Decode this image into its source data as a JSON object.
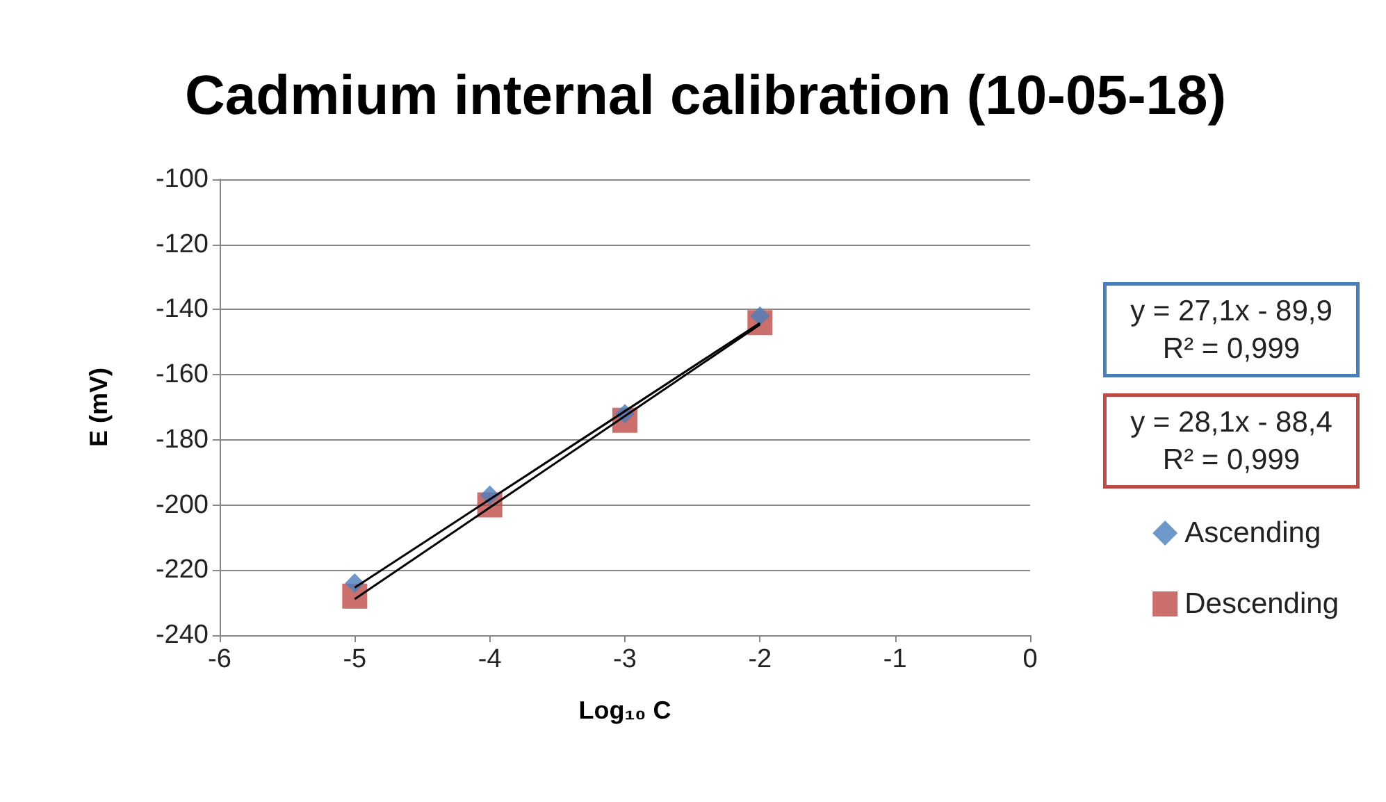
{
  "chart_data": {
    "type": "scatter",
    "title": "Cadmium internal calibration (10-05-18)",
    "xlabel": "Log₁₀ C",
    "ylabel": "E (mV)",
    "x": [
      -5,
      -4,
      -3,
      -2
    ],
    "series": [
      {
        "name": "Ascending",
        "color": "#4a7ebb",
        "marker": "diamond",
        "values": [
          -224,
          -197,
          -172,
          -142
        ]
      },
      {
        "name": "Descending",
        "color": "#be4b48",
        "marker": "square",
        "values": [
          -228,
          -200,
          -174,
          -144
        ]
      },
      {
        "type": "line",
        "color": "#000000",
        "marker": "none",
        "line_style": "solid",
        "values": [
          -225.4,
          -198.3,
          -171.2,
          -144.1
        ]
      },
      {
        "type": "line",
        "color": "#000000",
        "marker": "none",
        "line_style": "solid",
        "values": [
          -228.9,
          -200.8,
          -172.7,
          -144.6
        ]
      }
    ],
    "annotations": [
      "y = 27,1x - 89,9\nR² = 0,999",
      "y = 28,1x - 88,4\nR² = 0,999"
    ],
    "xlim": [
      -6,
      0
    ],
    "xticks": [
      -6,
      -5,
      -4,
      -3,
      -2,
      -1,
      0
    ],
    "ylim": [
      -240,
      -100
    ],
    "yticks": [
      -240,
      -220,
      -200,
      -180,
      -160,
      -140,
      -120,
      -100
    ],
    "grid": "y",
    "legend": "right"
  }
}
